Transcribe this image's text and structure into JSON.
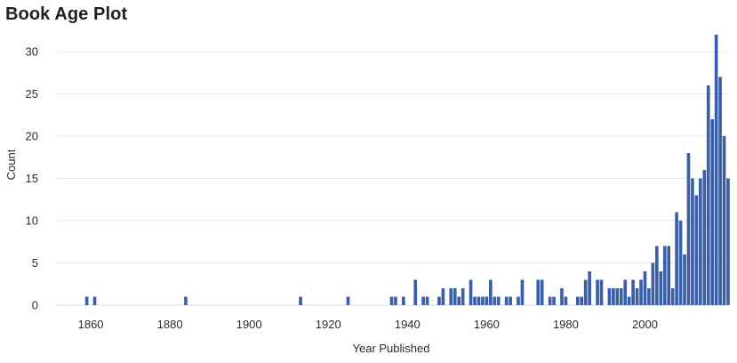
{
  "chart_data": {
    "type": "bar",
    "title": "Book Age Plot",
    "xlabel": "Year Published",
    "ylabel": "Count",
    "xlim": [
      1851,
      2021
    ],
    "ylim": [
      0,
      32
    ],
    "xticks": [
      1860,
      1880,
      1900,
      1920,
      1940,
      1960,
      1980,
      2000
    ],
    "yticks": [
      0,
      5,
      10,
      15,
      20,
      25,
      30
    ],
    "grid": true,
    "legend": "none",
    "bar_color": "#3a5fa8",
    "x": [
      1859,
      1861,
      1884,
      1913,
      1925,
      1936,
      1937,
      1939,
      1942,
      1944,
      1945,
      1948,
      1949,
      1951,
      1952,
      1953,
      1954,
      1956,
      1957,
      1958,
      1959,
      1960,
      1961,
      1962,
      1963,
      1965,
      1966,
      1968,
      1969,
      1973,
      1974,
      1976,
      1977,
      1979,
      1980,
      1983,
      1984,
      1985,
      1986,
      1988,
      1989,
      1991,
      1992,
      1993,
      1994,
      1995,
      1996,
      1997,
      1998,
      1999,
      2000,
      2001,
      2002,
      2003,
      2004,
      2005,
      2006,
      2007,
      2008,
      2009,
      2010,
      2011,
      2012,
      2013,
      2014,
      2015,
      2016,
      2017,
      2018,
      2019,
      2020,
      2021
    ],
    "values": [
      1,
      1,
      1,
      1,
      1,
      1,
      1,
      1,
      3,
      1,
      1,
      1,
      2,
      2,
      2,
      1,
      2,
      3,
      1,
      1,
      1,
      1,
      3,
      1,
      1,
      1,
      1,
      1,
      3,
      3,
      3,
      1,
      1,
      2,
      1,
      1,
      1,
      3,
      4,
      3,
      3,
      2,
      2,
      2,
      2,
      3,
      1,
      3,
      2,
      3,
      4,
      2,
      5,
      7,
      4,
      7,
      7,
      2,
      11,
      10,
      6,
      18,
      15,
      13,
      15,
      16,
      26,
      22,
      32,
      27,
      20,
      15
    ]
  }
}
